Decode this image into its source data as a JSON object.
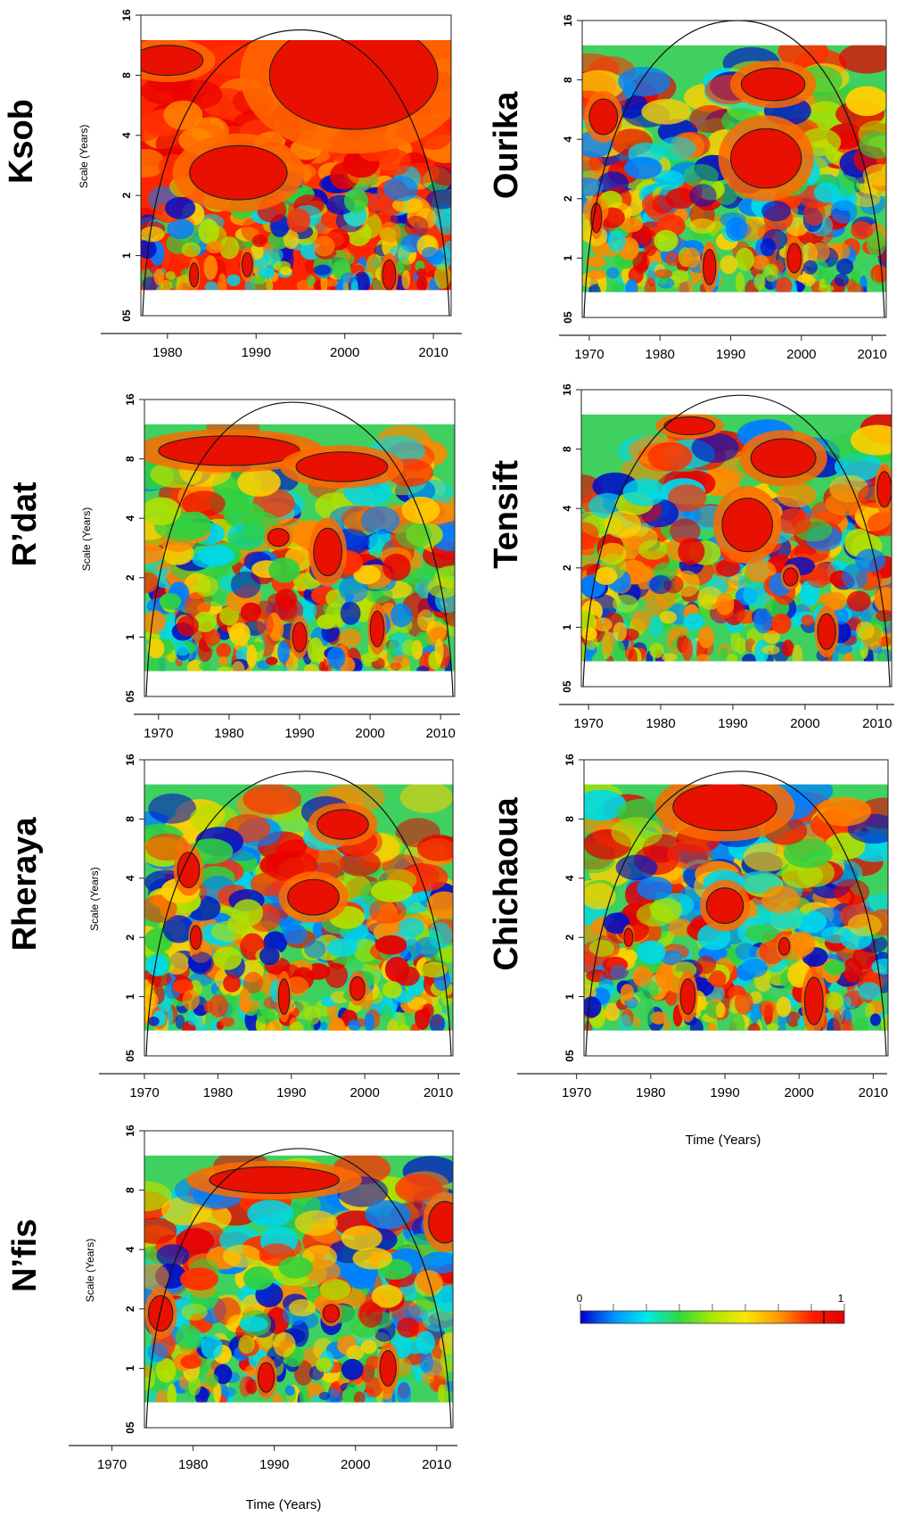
{
  "colorbar": {
    "min_label": "0",
    "max_label": "1",
    "stops": [
      "#0000c8",
      "#0090ff",
      "#00e8e8",
      "#30d840",
      "#a8e800",
      "#f8e800",
      "#ff9a00",
      "#ff2000",
      "#e00000"
    ]
  },
  "contour_color": "#222222",
  "chart_data": [
    {
      "type": "heatmap",
      "station": "Ksob",
      "ylabel": "Scale (Years)",
      "xlabel": "",
      "x_ticks": [
        1980,
        1990,
        2000,
        2010
      ],
      "y_ticks": [
        "1",
        "2",
        "4",
        "8",
        "16"
      ],
      "y_bottom_label": "05",
      "xlim": [
        1977,
        2012
      ],
      "ylim_scale_years": [
        0.5,
        16
      ],
      "coi_peak_year": 1995,
      "coi_peak_scale": 13.5,
      "value_range": [
        0,
        1
      ],
      "dominant_level": 0.95,
      "significant_regions": [
        {
          "center_year": 2001,
          "center_scale": 8,
          "extent_years": 19,
          "extent_octaves": 1.8
        },
        {
          "center_year": 1988,
          "center_scale": 2.6,
          "extent_years": 11,
          "extent_octaves": 0.9
        },
        {
          "center_year": 1980,
          "center_scale": 9.5,
          "extent_years": 8,
          "extent_octaves": 0.5
        },
        {
          "center_year": 2005,
          "center_scale": 0.8,
          "extent_years": 1.5,
          "extent_octaves": 0.5
        },
        {
          "center_year": 1989,
          "center_scale": 0.9,
          "extent_years": 1.2,
          "extent_octaves": 0.4
        },
        {
          "center_year": 1983,
          "center_scale": 0.8,
          "extent_years": 1.0,
          "extent_octaves": 0.4
        }
      ]
    },
    {
      "type": "heatmap",
      "station": "Ourika",
      "ylabel": "",
      "xlabel": "",
      "x_ticks": [
        1970,
        1980,
        1990,
        2000,
        2010
      ],
      "y_ticks": [
        "1",
        "2",
        "4",
        "8",
        "16"
      ],
      "y_bottom_label": "05",
      "xlim": [
        1969,
        2012
      ],
      "ylim_scale_years": [
        0.5,
        16
      ],
      "coi_peak_year": 1991,
      "coi_peak_scale": 16,
      "value_range": [
        0,
        1
      ],
      "dominant_level": 0.5,
      "significant_regions": [
        {
          "center_year": 1996,
          "center_scale": 7.6,
          "extent_years": 9,
          "extent_octaves": 0.55
        },
        {
          "center_year": 1995,
          "center_scale": 3.2,
          "extent_years": 10,
          "extent_octaves": 1.0
        },
        {
          "center_year": 1972,
          "center_scale": 5.2,
          "extent_years": 4,
          "extent_octaves": 0.6
        },
        {
          "center_year": 1971,
          "center_scale": 1.6,
          "extent_years": 1.5,
          "extent_octaves": 0.5
        },
        {
          "center_year": 1987,
          "center_scale": 0.9,
          "extent_years": 1.8,
          "extent_octaves": 0.6
        },
        {
          "center_year": 1999,
          "center_scale": 1.0,
          "extent_years": 2,
          "extent_octaves": 0.5
        }
      ]
    },
    {
      "type": "heatmap",
      "station": "R’dat",
      "ylabel": "Scale (Years)",
      "xlabel": "",
      "x_ticks": [
        1970,
        1980,
        1990,
        2000,
        2010
      ],
      "y_ticks": [
        "1",
        "2",
        "4",
        "8",
        "16"
      ],
      "y_bottom_label": "05",
      "xlim": [
        1968,
        2012
      ],
      "ylim_scale_years": [
        0.5,
        16
      ],
      "coi_peak_year": 1989,
      "coi_peak_scale": 15.5,
      "value_range": [
        0,
        1
      ],
      "dominant_level": 0.55,
      "significant_regions": [
        {
          "center_year": 1980,
          "center_scale": 8.8,
          "extent_years": 20,
          "extent_octaves": 0.5
        },
        {
          "center_year": 1996,
          "center_scale": 7.3,
          "extent_years": 13,
          "extent_octaves": 0.5
        },
        {
          "center_year": 1994,
          "center_scale": 2.7,
          "extent_years": 4,
          "extent_octaves": 0.8
        },
        {
          "center_year": 1987,
          "center_scale": 3.2,
          "extent_years": 3,
          "extent_octaves": 0.3
        },
        {
          "center_year": 1990,
          "center_scale": 1.0,
          "extent_years": 2,
          "extent_octaves": 0.5
        },
        {
          "center_year": 2001,
          "center_scale": 1.1,
          "extent_years": 2,
          "extent_octaves": 0.6
        }
      ]
    },
    {
      "type": "heatmap",
      "station": "Tensift",
      "ylabel": "",
      "xlabel": "",
      "x_ticks": [
        1970,
        1980,
        1990,
        2000,
        2010
      ],
      "y_ticks": [
        "1",
        "2",
        "4",
        "8",
        "16"
      ],
      "y_bottom_label": "05",
      "xlim": [
        1969,
        2012
      ],
      "ylim_scale_years": [
        0.5,
        16
      ],
      "coi_peak_year": 1991,
      "coi_peak_scale": 15,
      "value_range": [
        0,
        1
      ],
      "dominant_level": 0.5,
      "significant_regions": [
        {
          "center_year": 1984,
          "center_scale": 10.5,
          "extent_years": 7,
          "extent_octaves": 0.3
        },
        {
          "center_year": 1997,
          "center_scale": 7.2,
          "extent_years": 9,
          "extent_octaves": 0.65
        },
        {
          "center_year": 1992,
          "center_scale": 3.3,
          "extent_years": 7,
          "extent_octaves": 0.9
        },
        {
          "center_year": 2003,
          "center_scale": 0.95,
          "extent_years": 2.5,
          "extent_octaves": 0.6
        },
        {
          "center_year": 2011,
          "center_scale": 5.0,
          "extent_years": 2,
          "extent_octaves": 0.6
        },
        {
          "center_year": 1998,
          "center_scale": 1.8,
          "extent_years": 2,
          "extent_octaves": 0.3
        }
      ]
    },
    {
      "type": "heatmap",
      "station": "Rheraya",
      "ylabel": "Scale (Years)",
      "xlabel": "",
      "x_ticks": [
        1970,
        1980,
        1990,
        2000,
        2010
      ],
      "y_ticks": [
        "1",
        "2",
        "4",
        "8",
        "16"
      ],
      "y_bottom_label": "05",
      "xlim": [
        1970,
        2012
      ],
      "ylim_scale_years": [
        0.5,
        16
      ],
      "coi_peak_year": 1992,
      "coi_peak_scale": 14,
      "value_range": [
        0,
        1
      ],
      "dominant_level": 0.55,
      "significant_regions": [
        {
          "center_year": 1997,
          "center_scale": 7.5,
          "extent_years": 7,
          "extent_octaves": 0.5
        },
        {
          "center_year": 1993,
          "center_scale": 3.2,
          "extent_years": 7,
          "extent_octaves": 0.6
        },
        {
          "center_year": 1976,
          "center_scale": 4.4,
          "extent_years": 3,
          "extent_octaves": 0.6
        },
        {
          "center_year": 1977,
          "center_scale": 2.0,
          "extent_years": 1.5,
          "extent_octaves": 0.4
        },
        {
          "center_year": 1989,
          "center_scale": 1.0,
          "extent_years": 1.5,
          "extent_octaves": 0.6
        },
        {
          "center_year": 1999,
          "center_scale": 1.1,
          "extent_years": 2,
          "extent_octaves": 0.4
        }
      ]
    },
    {
      "type": "heatmap",
      "station": "Chichaoua",
      "ylabel": "",
      "xlabel": "",
      "x_ticks": [
        1970,
        1980,
        1990,
        2000,
        2010
      ],
      "y_ticks": [
        "1",
        "2",
        "4",
        "8",
        "16"
      ],
      "y_bottom_label": "05",
      "xlim": [
        1971,
        2012
      ],
      "ylim_scale_years": [
        0.5,
        16
      ],
      "coi_peak_year": 1992,
      "coi_peak_scale": 14,
      "value_range": [
        0,
        1
      ],
      "dominant_level": 0.5,
      "significant_regions": [
        {
          "center_year": 1990,
          "center_scale": 9.2,
          "extent_years": 14,
          "extent_octaves": 0.8
        },
        {
          "center_year": 1990,
          "center_scale": 2.9,
          "extent_years": 5,
          "extent_octaves": 0.6
        },
        {
          "center_year": 2002,
          "center_scale": 0.95,
          "extent_years": 2.5,
          "extent_octaves": 0.8
        },
        {
          "center_year": 1977,
          "center_scale": 2.0,
          "extent_years": 1.2,
          "extent_octaves": 0.3
        },
        {
          "center_year": 1985,
          "center_scale": 1.0,
          "extent_years": 2,
          "extent_octaves": 0.6
        },
        {
          "center_year": 1998,
          "center_scale": 1.8,
          "extent_years": 1.5,
          "extent_octaves": 0.3
        }
      ]
    },
    {
      "type": "heatmap",
      "station": "N’fis",
      "ylabel": "Scale (Years)",
      "xlabel": "",
      "x_ticks": [
        1970,
        1980,
        1990,
        2000,
        2010
      ],
      "y_ticks": [
        "1",
        "2",
        "4",
        "8",
        "16"
      ],
      "y_bottom_label": "05",
      "xlim": [
        1974,
        2012
      ],
      "ylim_scale_years": [
        0.5,
        16
      ],
      "coi_peak_year": 1993,
      "coi_peak_scale": 13,
      "value_range": [
        0,
        1
      ],
      "dominant_level": 0.5,
      "significant_regions": [
        {
          "center_year": 1990,
          "center_scale": 9.0,
          "extent_years": 16,
          "extent_octaves": 0.45
        },
        {
          "center_year": 2011,
          "center_scale": 5.5,
          "extent_years": 4,
          "extent_octaves": 0.7
        },
        {
          "center_year": 1976,
          "center_scale": 1.9,
          "extent_years": 3,
          "extent_octaves": 0.6
        },
        {
          "center_year": 1997,
          "center_scale": 1.9,
          "extent_years": 2,
          "extent_octaves": 0.3
        },
        {
          "center_year": 2004,
          "center_scale": 1.0,
          "extent_years": 2,
          "extent_octaves": 0.6
        },
        {
          "center_year": 1989,
          "center_scale": 0.9,
          "extent_years": 2,
          "extent_octaves": 0.5
        }
      ]
    }
  ],
  "time_axis_label": "Time (Years)"
}
